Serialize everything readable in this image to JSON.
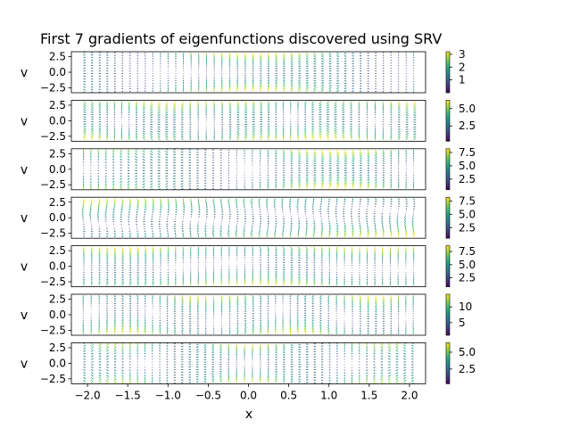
{
  "chart_data": {
    "type": "quiver",
    "title": "First 7 gradients of eigenfunctions discovered using SRV",
    "xlabel": "x",
    "ylabel": "v",
    "xlim": [
      -2.2,
      2.2
    ],
    "ylim": [
      -3.3,
      3.3
    ],
    "x_ticks": [
      -2.0,
      -1.5,
      -1.0,
      -0.5,
      0.0,
      0.5,
      1.0,
      1.5,
      2.0
    ],
    "x_tick_labels": [
      "−2.0",
      "−1.5",
      "−1.0",
      "−0.5",
      "0.0",
      "0.5",
      "1.0",
      "1.5",
      "2.0"
    ],
    "y_ticks": [
      2.5,
      0.0,
      -2.5
    ],
    "y_tick_labels": [
      "2.5",
      "0.0",
      "−2.5"
    ],
    "grid": false,
    "colormap": "viridis",
    "panels": [
      {
        "index": 1,
        "colorbar_range": [
          0.0,
          3.2
        ],
        "colorbar_ticks": [
          1,
          2,
          3
        ],
        "colorbar_tick_labels": [
          "1",
          "2",
          "3"
        ]
      },
      {
        "index": 2,
        "colorbar_range": [
          0.3,
          6.2
        ],
        "colorbar_ticks": [
          2.5,
          5.0
        ],
        "colorbar_tick_labels": [
          "2.5",
          "5.0"
        ]
      },
      {
        "index": 3,
        "colorbar_range": [
          0.5,
          8.2
        ],
        "colorbar_ticks": [
          2.5,
          5.0,
          7.5
        ],
        "colorbar_tick_labels": [
          "2.5",
          "5.0",
          "7.5"
        ]
      },
      {
        "index": 4,
        "colorbar_range": [
          0.5,
          8.2
        ],
        "colorbar_ticks": [
          2.5,
          5.0,
          7.5
        ],
        "colorbar_tick_labels": [
          "2.5",
          "5.0",
          "7.5"
        ]
      },
      {
        "index": 5,
        "colorbar_range": [
          0.8,
          8.6
        ],
        "colorbar_ticks": [
          2.5,
          5.0,
          7.5
        ],
        "colorbar_tick_labels": [
          "2.5",
          "5.0",
          "7.5"
        ]
      },
      {
        "index": 6,
        "colorbar_range": [
          1.0,
          14.0
        ],
        "colorbar_ticks": [
          5,
          10
        ],
        "colorbar_tick_labels": [
          "5",
          "10"
        ]
      },
      {
        "index": 7,
        "colorbar_range": [
          0.3,
          6.4
        ],
        "colorbar_ticks": [
          2.5,
          5.0
        ],
        "colorbar_tick_labels": [
          "2.5",
          "5.0"
        ]
      }
    ]
  }
}
